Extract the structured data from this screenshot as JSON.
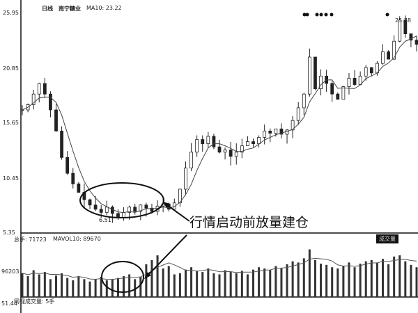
{
  "header": {
    "period": "日线",
    "stock": "南宁糖业",
    "ma": "MA10: 23.22"
  },
  "volume_header": {
    "total": "总手: 71723",
    "mavol": "MAVOL10: 89670"
  },
  "volume_footer": "网视成交量: 5手",
  "volume_tag": "成交量",
  "annotation": "行情启动前放量建仓",
  "chart_data": {
    "type": "candlestick",
    "title": "",
    "y_ticks": [
      "25.95",
      "20.85",
      "15.65",
      "10.45",
      "5.35"
    ],
    "ylim": [
      5.35,
      25.95
    ],
    "volume_ticks": [
      "96203",
      "51.44"
    ],
    "low_label": "6.51",
    "high_label": "25.78",
    "closes": [
      17,
      17.5,
      18.5,
      19.5,
      18.5,
      17,
      15,
      12.5,
      11,
      10,
      9.2,
      8.5,
      8,
      7.6,
      7.3,
      7.8,
      7.2,
      6.8,
      7.3,
      7.8,
      7.4,
      8,
      7.7,
      7.4,
      7.9,
      8.1,
      7.6,
      8.2,
      9.5,
      11.5,
      13,
      14.2,
      13.8,
      14.5,
      13.5,
      13,
      13.2,
      12.6,
      13,
      13.6,
      14,
      13.8,
      14.4,
      15,
      14.8,
      15.2,
      14.7,
      15.1,
      16,
      17.2,
      18.5,
      22,
      19,
      20.2,
      19.5,
      18.5,
      18,
      19.2,
      20,
      19.4,
      20.2,
      21,
      20.5,
      21.4,
      22.5,
      21.8,
      23.5,
      25.5,
      24.2,
      23.6,
      23.2
    ],
    "volumes": [
      40,
      35,
      45,
      38,
      42,
      30,
      36,
      40,
      32,
      28,
      35,
      30,
      26,
      30,
      34,
      28,
      30,
      32,
      35,
      38,
      30,
      34,
      55,
      62,
      70,
      48,
      52,
      38,
      40,
      46,
      50,
      44,
      42,
      48,
      40,
      38,
      45,
      42,
      40,
      44,
      38,
      46,
      50,
      48,
      45,
      52,
      48,
      55,
      60,
      58,
      65,
      80,
      62,
      56,
      54,
      50,
      48,
      52,
      58,
      50,
      56,
      60,
      62,
      58,
      64,
      55,
      68,
      70,
      60,
      54,
      50
    ],
    "annotations": [
      {
        "text": "行情启动前放量建仓",
        "target": "accumulation-ellipse"
      }
    ]
  }
}
